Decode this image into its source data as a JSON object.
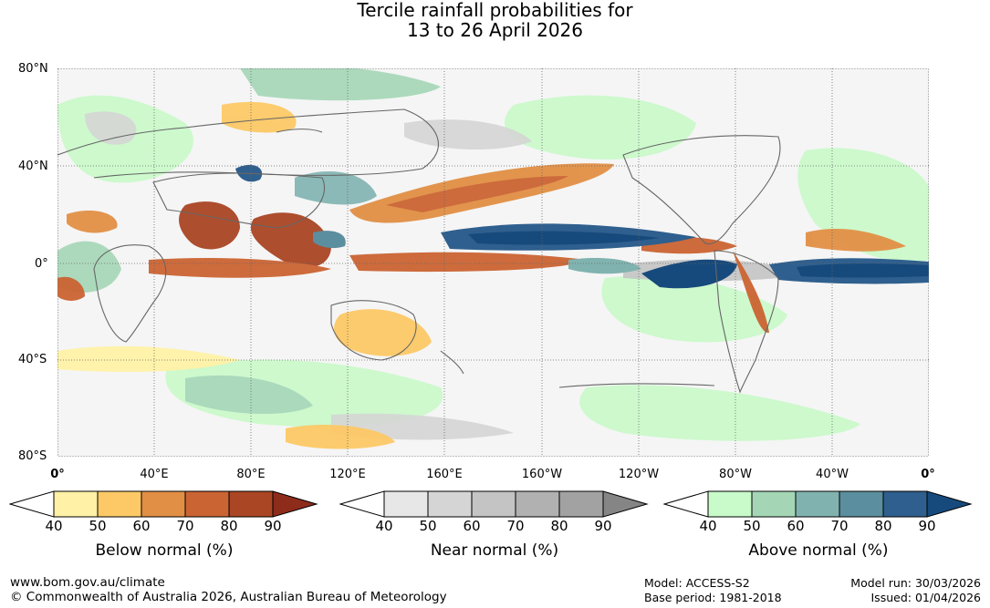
{
  "title": {
    "line1": "Tercile rainfall probabilities for",
    "line2": "13 to 26 April 2026"
  },
  "map": {
    "lat_labels": [
      "80°N",
      "40°N",
      "0°",
      "40°S",
      "80°S"
    ],
    "lon_labels": [
      "0°",
      "40°E",
      "80°E",
      "120°E",
      "160°E",
      "160°W",
      "120°W",
      "80°W",
      "40°W",
      "0°"
    ]
  },
  "legends": [
    {
      "title": "Below normal (%)",
      "ticks": [
        "40",
        "50",
        "60",
        "70",
        "80",
        "90"
      ],
      "colors": [
        "#fff1a6",
        "#fdc966",
        "#e18f45",
        "#cb6433",
        "#aa4624",
        "#8e2c1c"
      ]
    },
    {
      "title": "Near normal (%)",
      "ticks": [
        "40",
        "50",
        "60",
        "70",
        "80",
        "90"
      ],
      "colors": [
        "#e7e7e7",
        "#d5d5d5",
        "#c4c4c4",
        "#b1b1b1",
        "#a2a2a2",
        "#858585"
      ]
    },
    {
      "title": "Above normal (%)",
      "ticks": [
        "40",
        "50",
        "60",
        "70",
        "80",
        "90"
      ],
      "colors": [
        "#c9fac9",
        "#a4d6b6",
        "#80b3b0",
        "#5b8e9e",
        "#2f5f8e",
        "#174a7c"
      ]
    }
  ],
  "footer": {
    "website": "www.bom.gov.au/climate",
    "copyright": "© Commonwealth of Australia 2026, Australian Bureau of Meteorology",
    "model": "Model: ACCESS-S2",
    "base_period": "Base period: 1981-2018",
    "model_run": "Model run: 30/03/2026",
    "issued": "Issued: 01/04/2026"
  }
}
